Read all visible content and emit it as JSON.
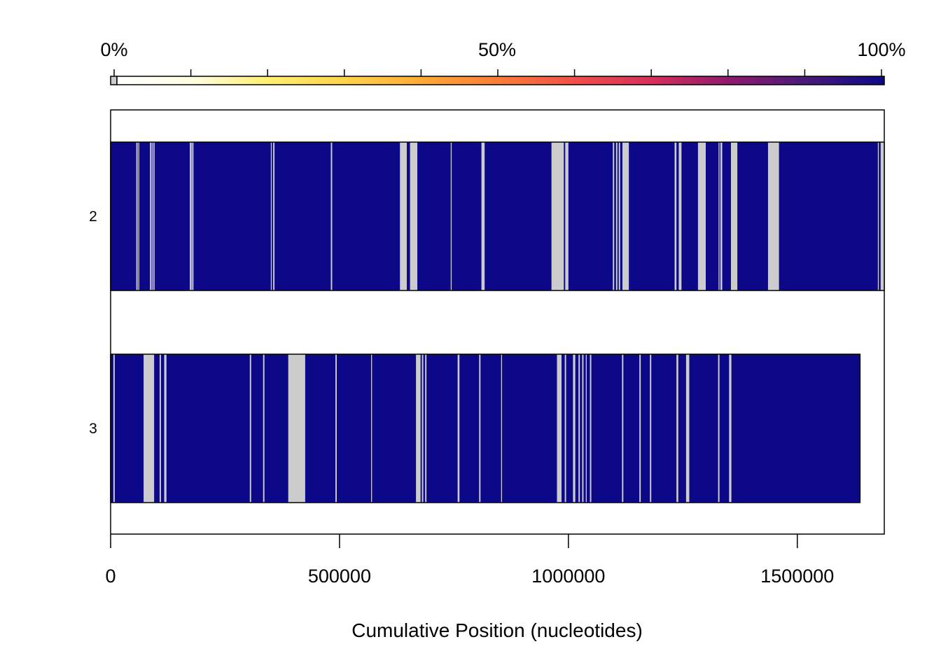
{
  "chart_data": {
    "type": "heatmap",
    "title": "",
    "xlabel": "Cumulative Position (nucleotides)",
    "ylabel": "",
    "xlim": [
      0,
      1690000
    ],
    "x_ticks": [
      0,
      500000,
      1000000,
      1500000
    ],
    "x_tick_labels": [
      "0",
      "500000",
      "1000000",
      "1500000"
    ],
    "grid": false,
    "legend": {
      "position": "top",
      "kind": "colorbar",
      "labels": [
        "0%",
        "50%",
        "100%"
      ],
      "ticks": [
        0,
        10,
        20,
        30,
        40,
        50,
        60,
        70,
        80,
        90,
        100
      ],
      "na_color": "#cccccc",
      "gradient": [
        "#ffffff",
        "#fffde0",
        "#ffee70",
        "#ffd24a",
        "#ffa836",
        "#fa7a3a",
        "#ef4e4a",
        "#d42e5a",
        "#8c1a6e",
        "#481a7a",
        "#0d0887"
      ]
    },
    "colors": {
      "covered": "#0d0887",
      "missing": "#cccccc"
    },
    "rows": [
      {
        "label": "2",
        "start": 0,
        "end": 1690000,
        "value": 100,
        "gaps": [
          [
            56000,
            59000
          ],
          [
            60500,
            62500
          ],
          [
            86000,
            89000
          ],
          [
            90000,
            92000
          ],
          [
            93500,
            96000
          ],
          [
            173000,
            177000
          ],
          [
            178000,
            181000
          ],
          [
            350000,
            352000
          ],
          [
            355000,
            358000
          ],
          [
            481000,
            484000
          ],
          [
            632000,
            647000
          ],
          [
            654000,
            670000
          ],
          [
            743000,
            745000
          ],
          [
            810000,
            817000
          ],
          [
            963000,
            990000
          ],
          [
            993000,
            1000000
          ],
          [
            1097000,
            1100000
          ],
          [
            1104000,
            1107000
          ],
          [
            1110000,
            1113000
          ],
          [
            1118000,
            1132000
          ],
          [
            1232000,
            1236000
          ],
          [
            1241000,
            1247000
          ],
          [
            1283000,
            1300000
          ],
          [
            1328000,
            1330000
          ],
          [
            1332000,
            1336000
          ],
          [
            1355000,
            1369000
          ],
          [
            1436000,
            1460000
          ],
          [
            1676000,
            1678000
          ],
          [
            1682000,
            1690000
          ]
        ]
      },
      {
        "label": "3",
        "start": 0,
        "end": 1637000,
        "value": 100,
        "gaps": [
          [
            6000,
            9000
          ],
          [
            72000,
            95000
          ],
          [
            107000,
            110000
          ],
          [
            117000,
            122000
          ],
          [
            304000,
            307000
          ],
          [
            333000,
            336000
          ],
          [
            388000,
            425000
          ],
          [
            491000,
            494000
          ],
          [
            569000,
            571000
          ],
          [
            667000,
            677000
          ],
          [
            680000,
            683000
          ],
          [
            687000,
            690000
          ],
          [
            758000,
            762000
          ],
          [
            805000,
            808000
          ],
          [
            853000,
            855000
          ],
          [
            975000,
            985000
          ],
          [
            992000,
            995000
          ],
          [
            1010000,
            1015000
          ],
          [
            1022000,
            1025000
          ],
          [
            1030000,
            1033000
          ],
          [
            1038000,
            1040000
          ],
          [
            1047000,
            1050000
          ],
          [
            1117000,
            1120000
          ],
          [
            1155000,
            1158000
          ],
          [
            1178000,
            1181000
          ],
          [
            1236000,
            1240000
          ],
          [
            1257000,
            1264000
          ],
          [
            1327000,
            1330000
          ],
          [
            1351000,
            1356000
          ]
        ]
      }
    ]
  }
}
